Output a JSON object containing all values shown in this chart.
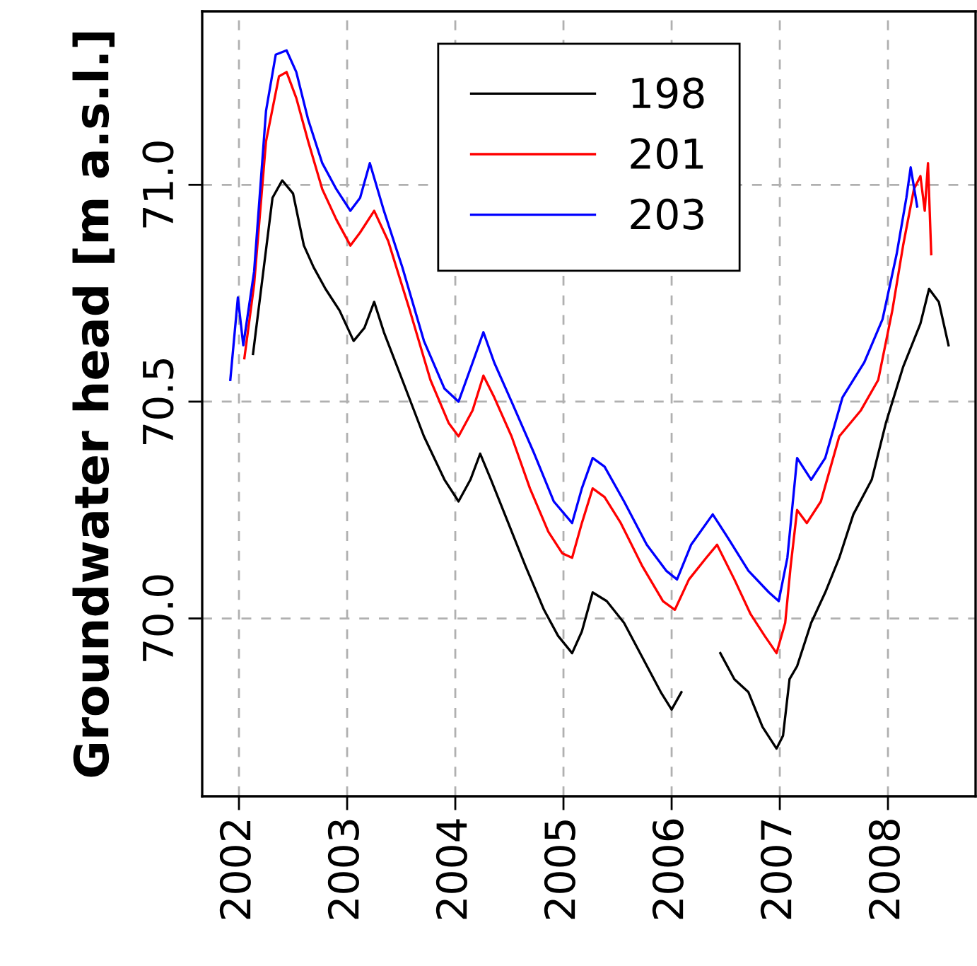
{
  "chart_data": {
    "type": "line",
    "ylabel": "Groundwater head [m a.s.l.]",
    "xlim": [
      2001.66,
      2008.81
    ],
    "xticks": [
      2002,
      2003,
      2004,
      2005,
      2006,
      2007,
      2008
    ],
    "ylim": [
      69.59,
      71.4
    ],
    "yticks": [
      {
        "value": 70,
        "label": "70.0"
      },
      {
        "value": 70.5,
        "label": "70.5"
      },
      {
        "value": 71,
        "label": "71.0"
      }
    ],
    "grid": true,
    "legend": "top",
    "line_style": "solid",
    "marker": "none",
    "series": [
      {
        "name": "198",
        "color": "#000000",
        "x": [
          2002.13,
          2002.21,
          2002.31,
          2002.4,
          2002.5,
          2002.6,
          2002.69,
          2002.8,
          2002.93,
          2003.06,
          2003.16,
          2003.25,
          2003.34,
          2003.51,
          2003.71,
          2003.9,
          2004.03,
          2004.14,
          2004.23,
          2004.33,
          2004.49,
          2004.65,
          2004.82,
          2004.95,
          2005.08,
          2005.17,
          2005.27,
          2005.4,
          2005.56,
          2005.73,
          2005.9,
          2006.0,
          2006.09,
          2006.3,
          2006.45,
          2006.58,
          2006.71,
          2006.84,
          2006.97,
          2007.03,
          2007.09,
          2007.16,
          2007.29,
          2007.42,
          2007.55,
          2007.68,
          2007.85,
          2007.98,
          2008.14,
          2008.3,
          2008.38,
          2008.47,
          2008.56
        ],
        "values": [
          70.61,
          70.77,
          70.97,
          71.01,
          70.98,
          70.86,
          70.81,
          70.76,
          70.71,
          70.64,
          70.67,
          70.73,
          70.66,
          70.55,
          70.42,
          70.32,
          70.27,
          70.32,
          70.38,
          70.32,
          70.22,
          70.12,
          70.02,
          69.96,
          69.92,
          69.97,
          70.06,
          70.04,
          69.99,
          69.91,
          69.83,
          69.79,
          69.83,
          null,
          69.92,
          69.86,
          69.83,
          69.75,
          69.7,
          69.73,
          69.86,
          69.89,
          69.99,
          70.06,
          70.14,
          70.24,
          70.32,
          70.45,
          70.58,
          70.68,
          70.76,
          70.73,
          70.63
        ]
      },
      {
        "name": "201",
        "color": "#ff0000",
        "x": [
          2002.05,
          2002.14,
          2002.25,
          2002.37,
          2002.44,
          2002.53,
          2002.64,
          2002.77,
          2002.9,
          2003.03,
          2003.12,
          2003.25,
          2003.38,
          2003.58,
          2003.77,
          2003.94,
          2004.03,
          2004.16,
          2004.26,
          2004.36,
          2004.52,
          2004.69,
          2004.86,
          2004.99,
          2005.08,
          2005.17,
          2005.27,
          2005.38,
          2005.53,
          2005.73,
          2005.92,
          2006.03,
          2006.16,
          2006.32,
          2006.42,
          2006.58,
          2006.73,
          2006.86,
          2006.97,
          2007.05,
          2007.1,
          2007.16,
          2007.25,
          2007.38,
          2007.55,
          2007.75,
          2007.91,
          2008.04,
          2008.14,
          2008.24,
          2008.3,
          2008.34,
          2008.37,
          2008.4
        ],
        "values": [
          70.6,
          70.77,
          71.1,
          71.25,
          71.26,
          71.2,
          71.1,
          70.99,
          70.92,
          70.86,
          70.89,
          70.94,
          70.87,
          70.71,
          70.55,
          70.45,
          70.42,
          70.48,
          70.56,
          70.51,
          70.42,
          70.3,
          70.2,
          70.15,
          70.14,
          70.22,
          70.3,
          70.28,
          70.22,
          70.12,
          70.04,
          70.02,
          70.09,
          70.14,
          70.17,
          70.09,
          70.01,
          69.96,
          69.92,
          69.99,
          70.12,
          70.25,
          70.22,
          70.27,
          70.42,
          70.48,
          70.55,
          70.71,
          70.86,
          70.99,
          71.02,
          70.94,
          71.05,
          70.84
        ]
      },
      {
        "name": "203",
        "color": "#0000ff",
        "x": [
          2001.92,
          2001.99,
          2002.04,
          2002.14,
          2002.25,
          2002.34,
          2002.44,
          2002.53,
          2002.64,
          2002.77,
          2002.9,
          2003.03,
          2003.12,
          2003.21,
          2003.34,
          2003.51,
          2003.71,
          2003.9,
          2004.03,
          2004.16,
          2004.26,
          2004.36,
          2004.52,
          2004.73,
          2004.91,
          2005.08,
          2005.17,
          2005.27,
          2005.38,
          2005.56,
          2005.77,
          2005.95,
          2006.05,
          2006.18,
          2006.38,
          2006.51,
          2006.71,
          2006.9,
          2006.99,
          2007.07,
          2007.16,
          2007.29,
          2007.42,
          2007.58,
          2007.78,
          2007.95,
          2008.08,
          2008.17,
          2008.21,
          2008.27
        ],
        "values": [
          70.55,
          70.74,
          70.63,
          70.8,
          71.17,
          71.3,
          71.31,
          71.26,
          71.15,
          71.05,
          70.99,
          70.94,
          70.97,
          71.05,
          70.94,
          70.81,
          70.64,
          70.53,
          70.5,
          70.59,
          70.66,
          70.59,
          70.5,
          70.38,
          70.27,
          70.22,
          70.3,
          70.37,
          70.35,
          70.27,
          70.17,
          70.11,
          70.09,
          70.17,
          70.24,
          70.19,
          70.11,
          70.06,
          70.04,
          70.14,
          70.37,
          70.32,
          70.37,
          70.51,
          70.59,
          70.69,
          70.84,
          70.97,
          71.04,
          70.95
        ]
      }
    ]
  }
}
